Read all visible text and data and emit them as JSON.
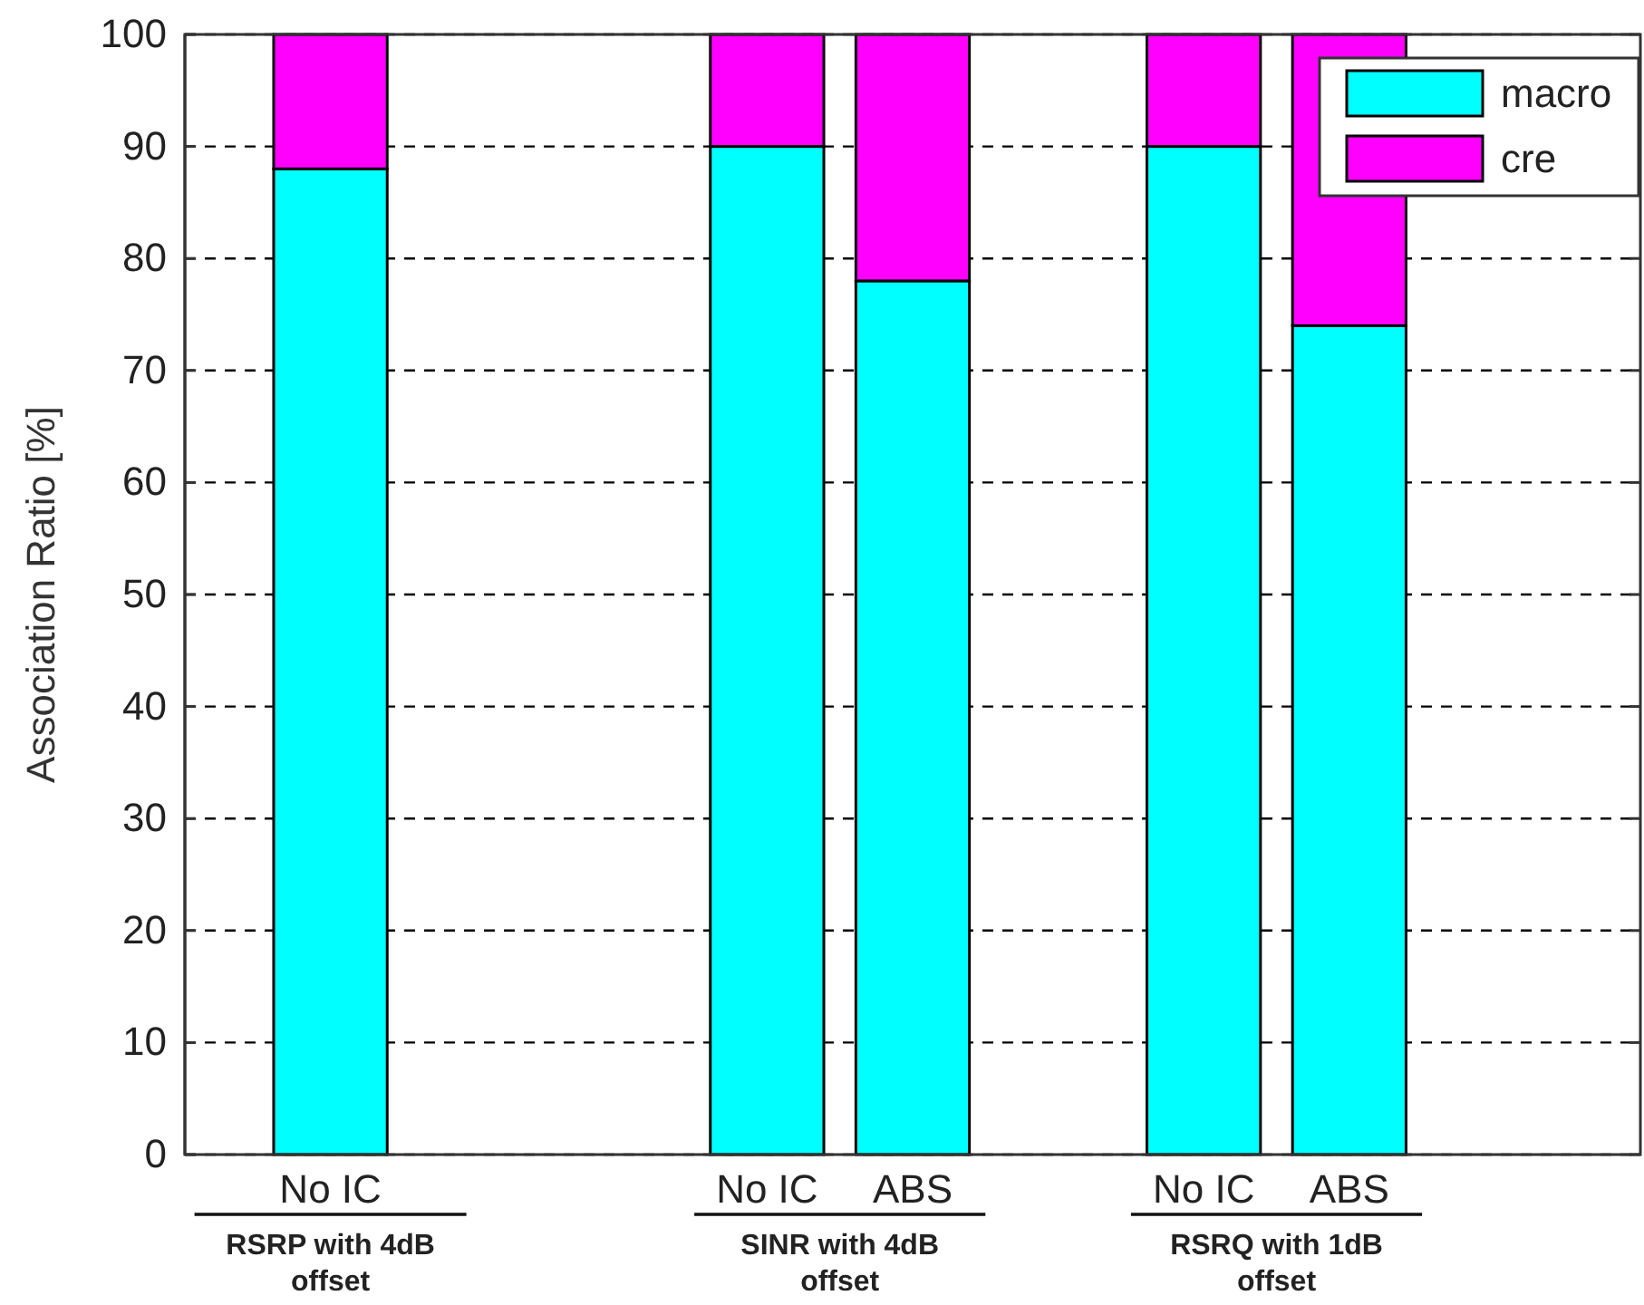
{
  "chart_data": {
    "type": "bar",
    "stacked": true,
    "categories": [
      "No IC",
      null,
      null,
      "No IC",
      "ABS",
      null,
      "No IC",
      "ABS",
      null
    ],
    "series": [
      {
        "name": "macro",
        "color": "#00ffff",
        "values": [
          88,
          null,
          null,
          90,
          78,
          null,
          90,
          74,
          null
        ]
      },
      {
        "name": "cre",
        "color": "#ff00ff",
        "values": [
          12,
          null,
          null,
          10,
          22,
          null,
          10,
          26,
          null
        ]
      }
    ],
    "ylabel": "Association Ratio [%]",
    "ylim": [
      0,
      100
    ],
    "yticks": [
      0,
      10,
      20,
      30,
      40,
      50,
      60,
      70,
      80,
      90,
      100
    ],
    "grid": "y",
    "legend": "top right",
    "annotations": [
      "RSRP with 4dB offset",
      "SINR with 4dB offset",
      "RSRQ with 1dB offset"
    ]
  }
}
